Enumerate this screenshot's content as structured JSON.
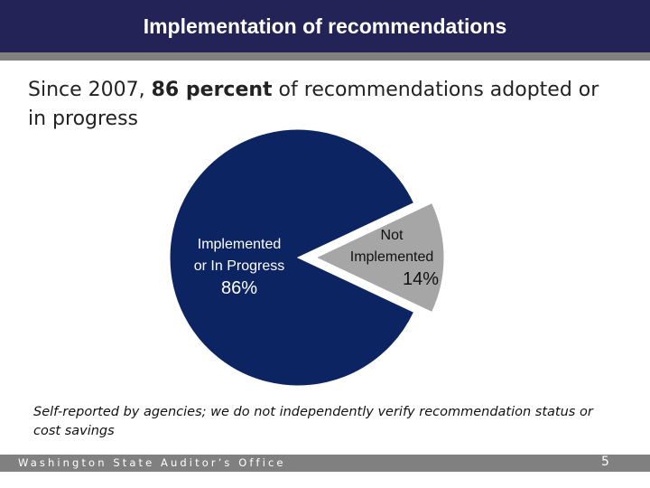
{
  "header": {
    "title": "Implementation of recommendations"
  },
  "subtitle": {
    "pre": "Since 2007, ",
    "bold": "86 percent",
    "post": " of recommendations adopted or in progress"
  },
  "chart_data": {
    "type": "pie",
    "slices": [
      {
        "label_line1": "Implemented",
        "label_line2": "or In Progress",
        "value": 86,
        "value_label": "86%",
        "color": "#0c2461",
        "exploded": false
      },
      {
        "label_line1": "Not",
        "label_line2": "Implemented",
        "value": 14,
        "value_label": "14%",
        "color": "#a6a6a6",
        "exploded": true
      }
    ]
  },
  "note": "Self-reported by agencies; we do not independently verify recommendation status or cost savings",
  "footer": {
    "org": "Washington State Auditor’s Office",
    "page": "5"
  }
}
